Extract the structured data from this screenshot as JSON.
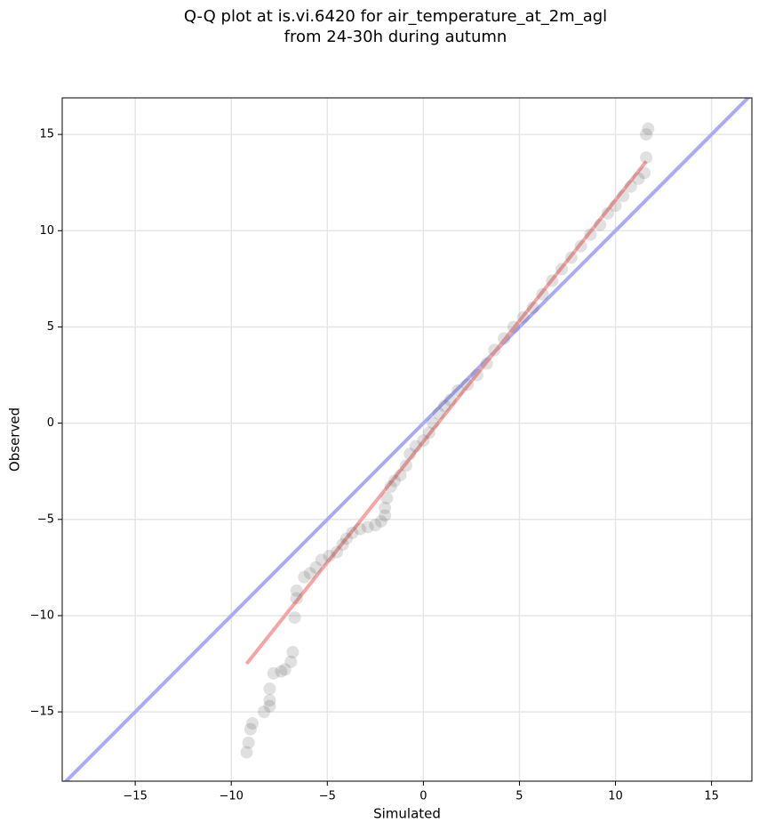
{
  "chart_data": {
    "type": "scatter",
    "title": [
      "Q-Q plot at is.vi.6420 for air_temperature_at_2m_agl",
      "from 24-30h during autumn"
    ],
    "x_label": "Simulated",
    "y_label": "Observed",
    "xlim": [
      -18.8,
      17.1
    ],
    "ylim": [
      -18.6,
      16.9
    ],
    "xticks": [
      {
        "value": -15,
        "label": "−15"
      },
      {
        "value": -10,
        "label": "−10"
      },
      {
        "value": -5,
        "label": "−5"
      },
      0,
      5,
      10,
      15
    ],
    "yticks": [
      {
        "value": -15,
        "label": "−15"
      },
      {
        "value": -10,
        "label": "−10"
      },
      {
        "value": -5,
        "label": "−5"
      },
      0,
      5,
      10,
      15
    ],
    "grid": true,
    "series": [
      {
        "type": "line",
        "color": "#aaaaf5",
        "x": [
          -20,
          20
        ],
        "values": [
          -20,
          20
        ]
      },
      {
        "type": "line",
        "color": "#f5a5a5",
        "x": [
          -9.2,
          11.6
        ],
        "values": [
          -12.5,
          13.6
        ]
      },
      {
        "type": "scatter",
        "color": "#555555",
        "x": [
          -9.2,
          -9.1,
          -9.0,
          -8.9,
          -8.3,
          -8.0,
          -8.0,
          -8.0,
          -7.8,
          -7.4,
          -7.2,
          -6.9,
          -6.8,
          -6.7,
          -6.6,
          -6.6,
          -6.2,
          -5.9,
          -5.6,
          -5.3,
          -4.9,
          -4.5,
          -4.2,
          -4.0,
          -3.7,
          -3.3,
          -2.9,
          -2.5,
          -2.2,
          -2.0,
          -2.0,
          -1.9,
          -1.7,
          -1.5,
          -1.2,
          -0.9,
          -0.7,
          -0.4,
          0.0,
          0.3,
          0.5,
          0.8,
          1.1,
          1.4,
          1.8,
          2.3,
          2.8,
          3.3,
          3.7,
          4.2,
          4.7,
          5.2,
          5.7,
          6.2,
          6.7,
          7.2,
          7.7,
          8.2,
          8.7,
          9.2,
          9.6,
          10.0,
          10.4,
          10.8,
          11.2,
          11.5,
          11.6,
          11.6,
          11.7
        ],
        "values": [
          -17.1,
          -16.6,
          -15.9,
          -15.6,
          -15.0,
          -14.7,
          -14.4,
          -13.8,
          -13.0,
          -12.9,
          -12.8,
          -12.4,
          -11.9,
          -10.1,
          -9.1,
          -8.7,
          -8.0,
          -7.8,
          -7.5,
          -7.1,
          -6.9,
          -6.7,
          -6.3,
          -6.0,
          -5.7,
          -5.5,
          -5.4,
          -5.3,
          -5.1,
          -4.8,
          -4.4,
          -3.9,
          -3.3,
          -3.0,
          -2.7,
          -2.2,
          -1.6,
          -1.2,
          -0.9,
          -0.5,
          0.0,
          0.5,
          0.9,
          1.2,
          1.7,
          2.0,
          2.5,
          3.1,
          3.8,
          4.4,
          5.0,
          5.5,
          6.0,
          6.7,
          7.4,
          8.0,
          8.6,
          9.2,
          9.8,
          10.3,
          10.9,
          11.3,
          11.8,
          12.3,
          12.7,
          13.0,
          13.8,
          15.0,
          15.3
        ]
      }
    ]
  }
}
